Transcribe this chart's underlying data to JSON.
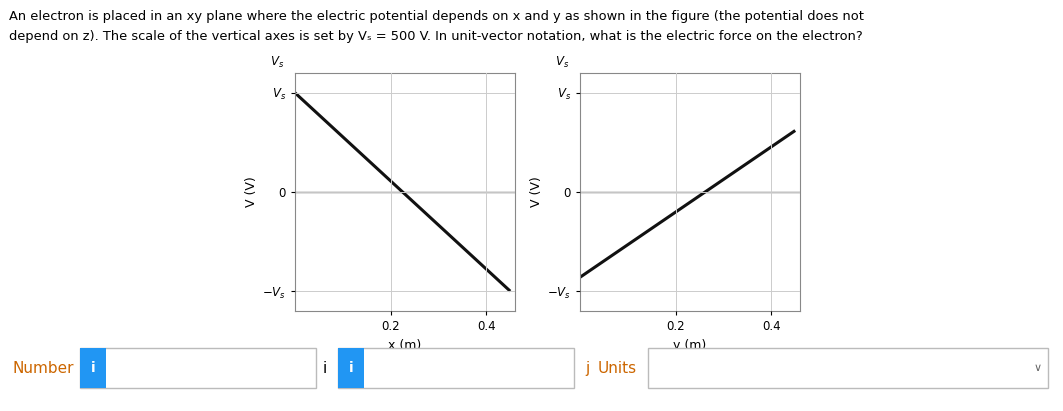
{
  "title_line1": "An electron is placed in an xy plane where the electric potential depends on x and y as shown in the figure (the potential does not",
  "title_line2": "depend on z). The scale of the vertical axes is set by Vₛ = 500 V. In unit-vector notation, what is the electric force on the electron?",
  "Vs": 500,
  "plot1": {
    "xlabel": "x (m)",
    "ylabel": "V (V)",
    "x_data": [
      0,
      0.45
    ],
    "y_data": [
      500,
      -500
    ],
    "xticks": [
      0.2,
      0.4
    ],
    "xtick_labels": [
      "0.2",
      "0.4"
    ],
    "ytick_vals": [
      500,
      0,
      -500
    ],
    "xlim": [
      0,
      0.46
    ],
    "ylim": [
      -600,
      600
    ]
  },
  "plot2": {
    "xlabel": "y (m)",
    "ylabel": "V (V)",
    "x_data": [
      0,
      0.45
    ],
    "y_data": [
      -430,
      310
    ],
    "xticks": [
      0.2,
      0.4
    ],
    "xtick_labels": [
      "0.2",
      "0.4"
    ],
    "ytick_vals": [
      500,
      0,
      -500
    ],
    "xlim": [
      0,
      0.46
    ],
    "ylim": [
      -600,
      600
    ]
  },
  "plot_bg": "#ffffff",
  "grid_color": "#cccccc",
  "line_color": "#111111",
  "axis_color": "#444444",
  "bottom_bar_color": "#2196F3",
  "number_color": "#cc6600",
  "j_color": "#cc6600",
  "number_label": "Number",
  "i_label": "i",
  "j_label": "j",
  "units_label": "Units"
}
